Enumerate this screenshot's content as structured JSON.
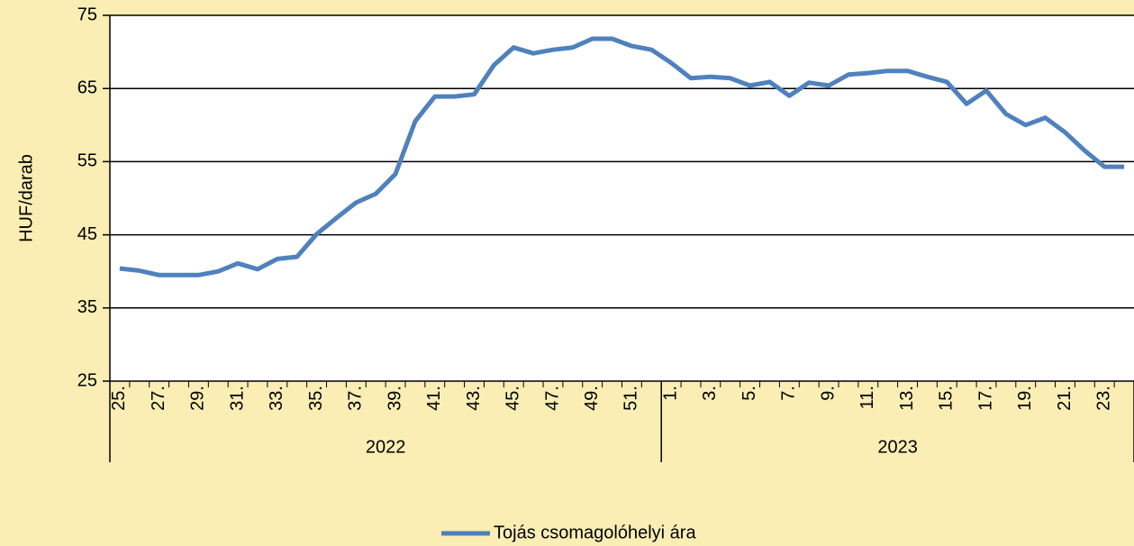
{
  "chart_data": {
    "type": "line",
    "y_label": "HUF/darab",
    "categories": [
      "25.",
      null,
      "27.",
      null,
      "29.",
      null,
      "31.",
      null,
      "33.",
      null,
      "35.",
      null,
      "37.",
      null,
      "39.",
      null,
      "41.",
      null,
      "43.",
      null,
      "45.",
      null,
      "47.",
      null,
      "49.",
      null,
      "51.",
      null,
      "1.",
      null,
      "3.",
      null,
      "5.",
      null,
      "7.",
      null,
      "9.",
      null,
      "11.",
      null,
      "13.",
      null,
      "15.",
      null,
      "17.",
      null,
      "19.",
      null,
      "21.",
      null,
      "23.",
      null
    ],
    "groups": [
      {
        "label": "2022",
        "count": 28
      },
      {
        "label": "2023",
        "count": 24
      }
    ],
    "series": [
      {
        "name": "Tojás csomagolóhelyi ára",
        "color": "#4f81bd",
        "values": [
          40.4,
          40.1,
          39.5,
          39.5,
          39.5,
          40.0,
          41.1,
          40.3,
          41.7,
          42.0,
          45.1,
          47.3,
          49.4,
          50.6,
          53.3,
          60.5,
          63.9,
          63.9,
          64.2,
          68.2,
          70.6,
          69.8,
          70.3,
          70.6,
          71.8,
          71.8,
          70.8,
          70.3,
          68.5,
          66.4,
          66.6,
          66.4,
          65.4,
          65.9,
          64.0,
          65.8,
          65.4,
          66.9,
          67.1,
          67.4,
          67.4,
          66.6,
          65.9,
          62.9,
          64.7,
          61.5,
          60.0,
          61.0,
          59.0,
          56.5,
          54.3,
          54.3
        ]
      }
    ],
    "ylim": [
      25,
      75
    ],
    "yticks": [
      25,
      35,
      45,
      55,
      65,
      75
    ],
    "grid": true,
    "legend": "bottom"
  }
}
